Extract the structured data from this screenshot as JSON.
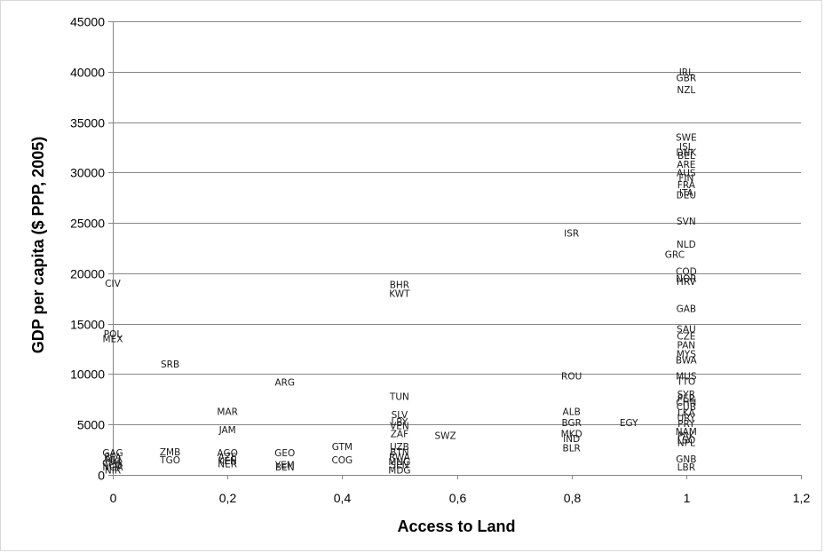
{
  "chart_data": {
    "type": "scatter",
    "xlabel": "Access to Land",
    "ylabel": "GDP per capita ($ PPP, 2005)",
    "xlim": [
      0,
      1.2
    ],
    "ylim": [
      0,
      45000
    ],
    "x_ticks": [
      "0",
      "0,2",
      "0,4",
      "0,6",
      "0,8",
      "1",
      "1,2"
    ],
    "y_ticks": [
      "0",
      "5000",
      "10000",
      "15000",
      "20000",
      "25000",
      "30000",
      "35000",
      "40000",
      "45000"
    ],
    "grid": "horizontal",
    "legend": "none",
    "marker": "country-code-label",
    "points": [
      {
        "label": "CIV",
        "x": 0.0,
        "y": 19000
      },
      {
        "label": "POL",
        "x": 0.0,
        "y": 14000
      },
      {
        "label": "MEX",
        "x": 0.0,
        "y": 13500
      },
      {
        "label": "GAG",
        "x": 0.0,
        "y": 2200
      },
      {
        "label": "BFA",
        "x": 0.0,
        "y": 1800
      },
      {
        "label": "MLI",
        "x": 0.0,
        "y": 1500
      },
      {
        "label": "CMR",
        "x": 0.0,
        "y": 1200
      },
      {
        "label": "TCD",
        "x": 0.0,
        "y": 1000
      },
      {
        "label": "NGA",
        "x": 0.0,
        "y": 800
      },
      {
        "label": "NIR",
        "x": 0.0,
        "y": 500
      },
      {
        "label": "SRB",
        "x": 0.1,
        "y": 11000
      },
      {
        "label": "ZMB",
        "x": 0.1,
        "y": 2300
      },
      {
        "label": "TGO",
        "x": 0.1,
        "y": 1500
      },
      {
        "label": "MAR",
        "x": 0.2,
        "y": 6300
      },
      {
        "label": "JAM",
        "x": 0.2,
        "y": 4500
      },
      {
        "label": "AGO",
        "x": 0.2,
        "y": 2200
      },
      {
        "label": "AZE",
        "x": 0.2,
        "y": 1800
      },
      {
        "label": "KEN",
        "x": 0.2,
        "y": 1400
      },
      {
        "label": "NER",
        "x": 0.2,
        "y": 1100
      },
      {
        "label": "ARG",
        "x": 0.3,
        "y": 9200
      },
      {
        "label": "GEO",
        "x": 0.3,
        "y": 2200
      },
      {
        "label": "YEM",
        "x": 0.3,
        "y": 1000
      },
      {
        "label": "BEN",
        "x": 0.3,
        "y": 800
      },
      {
        "label": "GTM",
        "x": 0.4,
        "y": 2800
      },
      {
        "label": "COG",
        "x": 0.4,
        "y": 1500
      },
      {
        "label": "BHR",
        "x": 0.5,
        "y": 18900
      },
      {
        "label": "KWT",
        "x": 0.5,
        "y": 18000
      },
      {
        "label": "TUN",
        "x": 0.5,
        "y": 7800
      },
      {
        "label": "SLV",
        "x": 0.5,
        "y": 6000
      },
      {
        "label": "LBY",
        "x": 0.5,
        "y": 5300
      },
      {
        "label": "VEN",
        "x": 0.5,
        "y": 4900
      },
      {
        "label": "ZAF",
        "x": 0.5,
        "y": 4100
      },
      {
        "label": "UZB",
        "x": 0.5,
        "y": 2800
      },
      {
        "label": "BTN",
        "x": 0.5,
        "y": 2300
      },
      {
        "label": "RWA",
        "x": 0.5,
        "y": 1800
      },
      {
        "label": "MNG",
        "x": 0.5,
        "y": 1300
      },
      {
        "label": "SEN",
        "x": 0.5,
        "y": 1000
      },
      {
        "label": "MDG",
        "x": 0.5,
        "y": 500
      },
      {
        "label": "SWZ",
        "x": 0.58,
        "y": 3900
      },
      {
        "label": "ISR",
        "x": 0.8,
        "y": 24000
      },
      {
        "label": "ROU",
        "x": 0.8,
        "y": 9800
      },
      {
        "label": "ALB",
        "x": 0.8,
        "y": 6300
      },
      {
        "label": "BGR",
        "x": 0.8,
        "y": 5200
      },
      {
        "label": "MKD",
        "x": 0.8,
        "y": 4100
      },
      {
        "label": "IND",
        "x": 0.8,
        "y": 3600
      },
      {
        "label": "BLR",
        "x": 0.8,
        "y": 2700
      },
      {
        "label": "EGY",
        "x": 0.9,
        "y": 5200
      },
      {
        "label": "IRL",
        "x": 1.0,
        "y": 40000
      },
      {
        "label": "GBR",
        "x": 1.0,
        "y": 39400
      },
      {
        "label": "NZL",
        "x": 1.0,
        "y": 38200
      },
      {
        "label": "SWE",
        "x": 1.0,
        "y": 33500
      },
      {
        "label": "ISL",
        "x": 1.0,
        "y": 32600
      },
      {
        "label": "DNK",
        "x": 1.0,
        "y": 32000
      },
      {
        "label": "BEL",
        "x": 1.0,
        "y": 31700
      },
      {
        "label": "ARE",
        "x": 1.0,
        "y": 30800
      },
      {
        "label": "AUS",
        "x": 1.0,
        "y": 30000
      },
      {
        "label": "FIN",
        "x": 1.0,
        "y": 29500
      },
      {
        "label": "FRA",
        "x": 1.0,
        "y": 28800
      },
      {
        "label": "ITA",
        "x": 1.0,
        "y": 28000
      },
      {
        "label": "DEU",
        "x": 1.0,
        "y": 27800
      },
      {
        "label": "SVN",
        "x": 1.0,
        "y": 25200
      },
      {
        "label": "NLD",
        "x": 1.0,
        "y": 22900
      },
      {
        "label": "GRC",
        "x": 0.98,
        "y": 21900
      },
      {
        "label": "COD",
        "x": 1.0,
        "y": 20200
      },
      {
        "label": "NOR",
        "x": 1.0,
        "y": 19500
      },
      {
        "label": "HRV",
        "x": 1.0,
        "y": 19200
      },
      {
        "label": "GAB",
        "x": 1.0,
        "y": 16500
      },
      {
        "label": "SAU",
        "x": 1.0,
        "y": 14500
      },
      {
        "label": "CZE",
        "x": 1.0,
        "y": 13800
      },
      {
        "label": "PAN",
        "x": 1.0,
        "y": 12900
      },
      {
        "label": "MYS",
        "x": 1.0,
        "y": 12000
      },
      {
        "label": "BWA",
        "x": 1.0,
        "y": 11400
      },
      {
        "label": "MUS",
        "x": 1.0,
        "y": 9800
      },
      {
        "label": "TTO",
        "x": 1.0,
        "y": 9300
      },
      {
        "label": "SYR",
        "x": 1.0,
        "y": 8000
      },
      {
        "label": "PER",
        "x": 1.0,
        "y": 7600
      },
      {
        "label": "CHN",
        "x": 1.0,
        "y": 7200
      },
      {
        "label": "CUB",
        "x": 1.0,
        "y": 6800
      },
      {
        "label": "LKA",
        "x": 1.0,
        "y": 6200
      },
      {
        "label": "URY",
        "x": 1.0,
        "y": 5700
      },
      {
        "label": "PRY",
        "x": 1.0,
        "y": 5100
      },
      {
        "label": "NAM",
        "x": 1.0,
        "y": 4300
      },
      {
        "label": "PAK",
        "x": 1.0,
        "y": 3900
      },
      {
        "label": "LSO",
        "x": 1.0,
        "y": 3500
      },
      {
        "label": "NPL",
        "x": 1.0,
        "y": 3200
      },
      {
        "label": "GNB",
        "x": 1.0,
        "y": 1600
      },
      {
        "label": "LBR",
        "x": 1.0,
        "y": 800
      }
    ]
  }
}
